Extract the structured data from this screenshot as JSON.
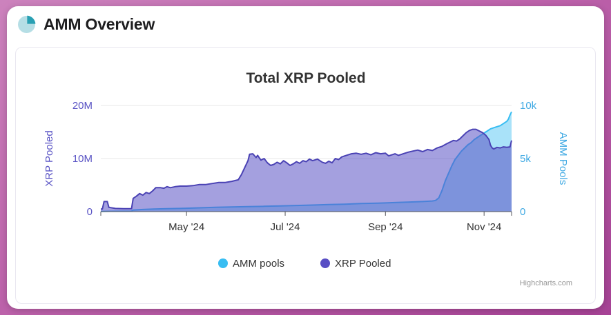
{
  "header": {
    "title": "AMM Overview",
    "icon": "pie-chart-icon",
    "icon_colors": {
      "base": "#b5dee5",
      "slice": "#29a0b3"
    }
  },
  "chart_data": {
    "type": "area",
    "title": "Total XRP Pooled",
    "credit": "Highcharts.com",
    "x_axis": {
      "domain": [
        "2024-03-09",
        "2024-11-18"
      ],
      "ticks": [
        {
          "date": "2024-05-01",
          "label": "May '24"
        },
        {
          "date": "2024-07-01",
          "label": "Jul '24"
        },
        {
          "date": "2024-09-01",
          "label": "Sep '24"
        },
        {
          "date": "2024-11-01",
          "label": "Nov '24"
        }
      ]
    },
    "y_axis_left": {
      "title": "XRP Pooled",
      "unit": "millions of XRP",
      "max": 20,
      "color": "#5b55c5",
      "ticks": [
        {
          "value": 0,
          "label": "0"
        },
        {
          "value": 10,
          "label": "10M"
        },
        {
          "value": 20,
          "label": "20M"
        }
      ]
    },
    "y_axis_right": {
      "title": "AMM Pools",
      "unit": "thousands of pools",
      "max": 10,
      "color": "#3fa9e3",
      "ticks": [
        {
          "value": 0,
          "label": "0"
        },
        {
          "value": 5,
          "label": "5k"
        },
        {
          "value": 10,
          "label": "10k"
        }
      ]
    },
    "legend": [
      {
        "label": "AMM pools",
        "color": "#38bdf2"
      },
      {
        "label": "XRP Pooled",
        "color": "#584ec4"
      }
    ],
    "series": [
      {
        "name": "AMM pools",
        "axis": "right",
        "line_color": "#38bdf2",
        "fill_color": "#a9e2f9",
        "points": [
          [
            "2024-03-09",
            0.02
          ],
          [
            "2024-03-15",
            0.03
          ],
          [
            "2024-03-22",
            0.04
          ],
          [
            "2024-03-28",
            0.05
          ],
          [
            "2024-03-29",
            0.15
          ],
          [
            "2024-04-04",
            0.2
          ],
          [
            "2024-04-11",
            0.25
          ],
          [
            "2024-04-19",
            0.28
          ],
          [
            "2024-04-27",
            0.3
          ],
          [
            "2024-05-01",
            0.32
          ],
          [
            "2024-05-09",
            0.36
          ],
          [
            "2024-05-19",
            0.4
          ],
          [
            "2024-05-29",
            0.44
          ],
          [
            "2024-06-08",
            0.47
          ],
          [
            "2024-06-18",
            0.5
          ],
          [
            "2024-06-28",
            0.54
          ],
          [
            "2024-07-08",
            0.58
          ],
          [
            "2024-07-18",
            0.62
          ],
          [
            "2024-07-28",
            0.66
          ],
          [
            "2024-08-07",
            0.7
          ],
          [
            "2024-08-17",
            0.76
          ],
          [
            "2024-08-27",
            0.8
          ],
          [
            "2024-09-01",
            0.82
          ],
          [
            "2024-09-08",
            0.86
          ],
          [
            "2024-09-16",
            0.9
          ],
          [
            "2024-09-24",
            0.95
          ],
          [
            "2024-09-30",
            1.0
          ],
          [
            "2024-10-02",
            1.05
          ],
          [
            "2024-10-04",
            1.3
          ],
          [
            "2024-10-06",
            2.0
          ],
          [
            "2024-10-08",
            2.9
          ],
          [
            "2024-10-10",
            3.6
          ],
          [
            "2024-10-12",
            4.3
          ],
          [
            "2024-10-14",
            4.9
          ],
          [
            "2024-10-16",
            5.3
          ],
          [
            "2024-10-18",
            5.7
          ],
          [
            "2024-10-20",
            6.0
          ],
          [
            "2024-10-22",
            6.3
          ],
          [
            "2024-10-24",
            6.5
          ],
          [
            "2024-10-26",
            6.8
          ],
          [
            "2024-10-28",
            7.0
          ],
          [
            "2024-10-30",
            7.2
          ],
          [
            "2024-11-01",
            7.4
          ],
          [
            "2024-11-03",
            7.6
          ],
          [
            "2024-11-05",
            7.8
          ],
          [
            "2024-11-07",
            7.9
          ],
          [
            "2024-11-09",
            8.0
          ],
          [
            "2024-11-11",
            8.1
          ],
          [
            "2024-11-13",
            8.3
          ],
          [
            "2024-11-15",
            8.5
          ],
          [
            "2024-11-16",
            8.7
          ],
          [
            "2024-11-17",
            9.1
          ],
          [
            "2024-11-18",
            9.4
          ]
        ]
      },
      {
        "name": "XRP Pooled",
        "axis": "left",
        "line_color": "#4a42b4",
        "fill_color": "rgba(90,82,196,0.55)",
        "points": [
          [
            "2024-03-09",
            0.5
          ],
          [
            "2024-03-10",
            0.5
          ],
          [
            "2024-03-11",
            1.9
          ],
          [
            "2024-03-13",
            1.9
          ],
          [
            "2024-03-14",
            0.8
          ],
          [
            "2024-03-18",
            0.6
          ],
          [
            "2024-03-23",
            0.55
          ],
          [
            "2024-03-28",
            0.55
          ],
          [
            "2024-03-29",
            2.5
          ],
          [
            "2024-03-31",
            2.9
          ],
          [
            "2024-04-02",
            3.4
          ],
          [
            "2024-04-04",
            3.1
          ],
          [
            "2024-04-06",
            3.6
          ],
          [
            "2024-04-08",
            3.4
          ],
          [
            "2024-04-10",
            3.9
          ],
          [
            "2024-04-12",
            4.5
          ],
          [
            "2024-04-15",
            4.5
          ],
          [
            "2024-04-17",
            4.4
          ],
          [
            "2024-04-19",
            4.7
          ],
          [
            "2024-04-21",
            4.5
          ],
          [
            "2024-04-24",
            4.7
          ],
          [
            "2024-04-27",
            4.8
          ],
          [
            "2024-05-01",
            4.8
          ],
          [
            "2024-05-05",
            4.9
          ],
          [
            "2024-05-09",
            5.1
          ],
          [
            "2024-05-13",
            5.1
          ],
          [
            "2024-05-17",
            5.3
          ],
          [
            "2024-05-21",
            5.5
          ],
          [
            "2024-05-25",
            5.5
          ],
          [
            "2024-05-29",
            5.7
          ],
          [
            "2024-06-02",
            6.0
          ],
          [
            "2024-06-04",
            7.0
          ],
          [
            "2024-06-06",
            8.3
          ],
          [
            "2024-06-08",
            9.6
          ],
          [
            "2024-06-09",
            10.8
          ],
          [
            "2024-06-11",
            10.9
          ],
          [
            "2024-06-13",
            10.2
          ],
          [
            "2024-06-14",
            10.6
          ],
          [
            "2024-06-16",
            9.7
          ],
          [
            "2024-06-18",
            10.0
          ],
          [
            "2024-06-20",
            9.2
          ],
          [
            "2024-06-22",
            8.7
          ],
          [
            "2024-06-24",
            8.9
          ],
          [
            "2024-06-26",
            9.3
          ],
          [
            "2024-06-28",
            9.0
          ],
          [
            "2024-06-30",
            9.6
          ],
          [
            "2024-07-02",
            9.2
          ],
          [
            "2024-07-04",
            8.7
          ],
          [
            "2024-07-06",
            9.0
          ],
          [
            "2024-07-08",
            9.4
          ],
          [
            "2024-07-10",
            9.1
          ],
          [
            "2024-07-12",
            9.6
          ],
          [
            "2024-07-14",
            9.4
          ],
          [
            "2024-07-16",
            9.9
          ],
          [
            "2024-07-18",
            9.6
          ],
          [
            "2024-07-21",
            9.9
          ],
          [
            "2024-07-24",
            9.3
          ],
          [
            "2024-07-26",
            9.1
          ],
          [
            "2024-07-28",
            9.5
          ],
          [
            "2024-07-30",
            9.2
          ],
          [
            "2024-08-01",
            10.0
          ],
          [
            "2024-08-03",
            9.8
          ],
          [
            "2024-08-05",
            10.3
          ],
          [
            "2024-08-07",
            10.5
          ],
          [
            "2024-08-09",
            10.7
          ],
          [
            "2024-08-11",
            10.9
          ],
          [
            "2024-08-14",
            11.0
          ],
          [
            "2024-08-17",
            10.8
          ],
          [
            "2024-08-20",
            11.0
          ],
          [
            "2024-08-23",
            10.7
          ],
          [
            "2024-08-26",
            11.1
          ],
          [
            "2024-08-29",
            10.9
          ],
          [
            "2024-09-01",
            11.0
          ],
          [
            "2024-09-03",
            10.5
          ],
          [
            "2024-09-05",
            10.7
          ],
          [
            "2024-09-07",
            10.9
          ],
          [
            "2024-09-09",
            10.6
          ],
          [
            "2024-09-12",
            10.9
          ],
          [
            "2024-09-15",
            11.2
          ],
          [
            "2024-09-18",
            11.4
          ],
          [
            "2024-09-21",
            11.6
          ],
          [
            "2024-09-24",
            11.3
          ],
          [
            "2024-09-27",
            11.7
          ],
          [
            "2024-09-30",
            11.5
          ],
          [
            "2024-10-03",
            12.0
          ],
          [
            "2024-10-06",
            12.3
          ],
          [
            "2024-10-09",
            12.8
          ],
          [
            "2024-10-11",
            13.1
          ],
          [
            "2024-10-13",
            13.4
          ],
          [
            "2024-10-15",
            13.3
          ],
          [
            "2024-10-17",
            13.7
          ],
          [
            "2024-10-19",
            14.3
          ],
          [
            "2024-10-21",
            14.9
          ],
          [
            "2024-10-23",
            15.3
          ],
          [
            "2024-10-25",
            15.5
          ],
          [
            "2024-10-27",
            15.5
          ],
          [
            "2024-10-29",
            15.2
          ],
          [
            "2024-10-31",
            14.9
          ],
          [
            "2024-11-02",
            14.4
          ],
          [
            "2024-11-04",
            13.6
          ],
          [
            "2024-11-05",
            12.5
          ],
          [
            "2024-11-06",
            12.0
          ],
          [
            "2024-11-07",
            11.8
          ],
          [
            "2024-11-09",
            12.1
          ],
          [
            "2024-11-11",
            12.0
          ],
          [
            "2024-11-13",
            12.2
          ],
          [
            "2024-11-15",
            12.1
          ],
          [
            "2024-11-17",
            12.2
          ],
          [
            "2024-11-18",
            13.4
          ]
        ]
      }
    ]
  }
}
